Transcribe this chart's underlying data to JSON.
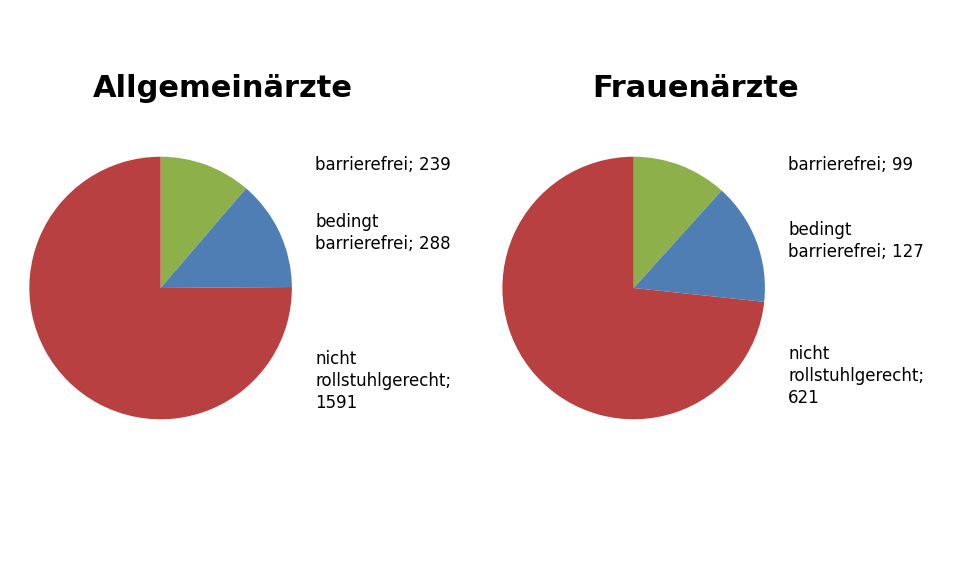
{
  "charts": [
    {
      "title": "Allgemeinärzte",
      "values": [
        239,
        288,
        1591
      ],
      "label_lines": [
        [
          "barrierefrei; 239"
        ],
        [
          "bedingt",
          "barrierefrei; 288"
        ],
        [
          "nicht",
          "rollstuhlgerecht;",
          "1591"
        ]
      ],
      "colors": [
        "#8db04a",
        "#4f7eb5",
        "#b94040"
      ]
    },
    {
      "title": "Frauenärzte",
      "values": [
        99,
        127,
        621
      ],
      "label_lines": [
        [
          "barrierefrei; 99"
        ],
        [
          "bedingt",
          "barrierefrei; 127"
        ],
        [
          "nicht",
          "rollstuhlgerecht;",
          "621"
        ]
      ],
      "colors": [
        "#8db04a",
        "#4f7eb5",
        "#b94040"
      ]
    }
  ],
  "background_color": "#ffffff",
  "title_fontsize": 22,
  "label_fontsize": 12,
  "startangle": 90
}
